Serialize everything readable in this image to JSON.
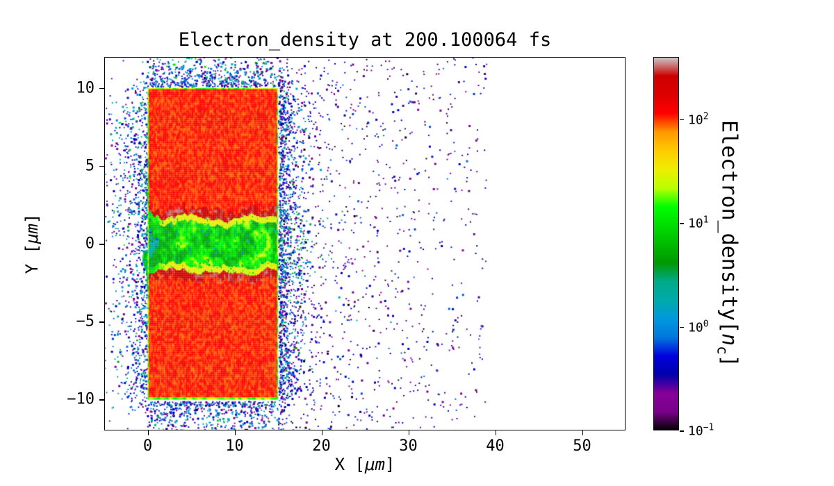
{
  "figure": {
    "background_color": "#ffffff",
    "frame_color": "#000000"
  },
  "chart_data": {
    "type": "heatmap",
    "title": "Electron_density at 200.100064 fs",
    "xlabel": {
      "prefix": "X [",
      "unit": "μm",
      "suffix": "]"
    },
    "ylabel": {
      "prefix": "Y [",
      "unit": "μm",
      "suffix": "]"
    },
    "xlim": [
      -5,
      55
    ],
    "ylim": [
      -12,
      12
    ],
    "xticks": {
      "values": [
        0,
        10,
        20,
        30,
        40,
        50
      ],
      "labels": [
        "0",
        "10",
        "20",
        "30",
        "40",
        "50"
      ]
    },
    "yticks": {
      "values": [
        10,
        5,
        0,
        -5,
        -10
      ],
      "labels": [
        "10",
        "5",
        "0",
        "−5",
        "−10"
      ]
    },
    "grid": false,
    "colorbar": {
      "label": {
        "prefix": "Electron_density[",
        "symbol": "n",
        "subscript": "c",
        "suffix": "]"
      },
      "scale": "log",
      "vmin": 0.1,
      "vmax": 400,
      "ticks": {
        "base": "10",
        "values": [
          100,
          10,
          1,
          0.1
        ],
        "exponents": [
          "2",
          "1",
          "0",
          "−1"
        ]
      },
      "colormap": "nipy_spectral",
      "colormap_stops": [
        [
          0.0,
          "#000000"
        ],
        [
          0.05,
          "#770088"
        ],
        [
          0.1,
          "#880099"
        ],
        [
          0.15,
          "#0000aa"
        ],
        [
          0.2,
          "#0000dd"
        ],
        [
          0.25,
          "#0077dd"
        ],
        [
          0.3,
          "#0099dd"
        ],
        [
          0.35,
          "#00aaaa"
        ],
        [
          0.4,
          "#00aa88"
        ],
        [
          0.45,
          "#009900"
        ],
        [
          0.5,
          "#00bb00"
        ],
        [
          0.55,
          "#00dd00"
        ],
        [
          0.6,
          "#00ff00"
        ],
        [
          0.65,
          "#bbff00"
        ],
        [
          0.7,
          "#eeee00"
        ],
        [
          0.75,
          "#ffcc00"
        ],
        [
          0.8,
          "#ff9900"
        ],
        [
          0.85,
          "#ff0000"
        ],
        [
          0.9,
          "#dd0000"
        ],
        [
          0.95,
          "#cc0000"
        ],
        [
          1.0,
          "#cccccc"
        ]
      ]
    },
    "content": {
      "target_slab": {
        "x": [
          0,
          15
        ],
        "y": [
          -10,
          10
        ],
        "bulk_density_nc": 110,
        "wall_density_nc": 280,
        "edge_density_nc": 18
      },
      "laser_channel": {
        "x": [
          0,
          15
        ],
        "y_center": 0,
        "y_half_width": 1.9,
        "density_nc_range": [
          2,
          40
        ]
      },
      "blowoff_plume": {
        "x": [
          -1.6,
          0
        ],
        "y": [
          -3.4,
          3.4
        ],
        "density_nc_range": [
          1,
          16
        ]
      },
      "scattered_electrons": {
        "x_extent": [
          -5,
          39
        ],
        "y_extent": [
          -12,
          12
        ],
        "density_nc_range": [
          0.1,
          2.5
        ]
      }
    }
  }
}
